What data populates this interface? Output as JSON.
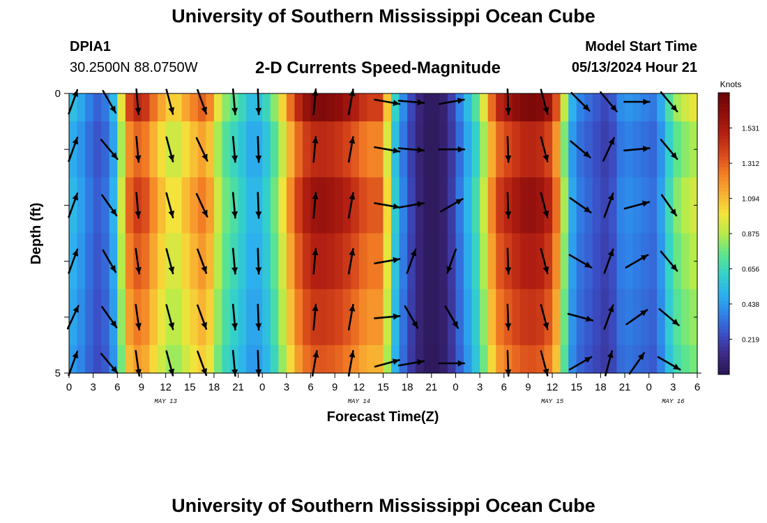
{
  "page": {
    "title_top": "University of Southern Mississippi Ocean Cube",
    "title_bottom": "University of Southern Mississippi Ocean Cube",
    "station": "DPIA1",
    "coordinates": "30.2500N  88.0750W",
    "subtitle": "2-D Currents Speed-Magnitude",
    "model_start_label": "Model Start Time",
    "model_start_value": "05/13/2024 Hour 21"
  },
  "colors": {
    "arrow": "#000000",
    "axis": "#000000",
    "palette": [
      "#2b1654",
      "#3c2a85",
      "#3b4ec6",
      "#2f82e8",
      "#2cb2ee",
      "#33d1c9",
      "#5ee58a",
      "#b5ec4a",
      "#f4e33a",
      "#f8b032",
      "#f27d25",
      "#d6461a",
      "#b32012",
      "#8f0e0c",
      "#6b0506"
    ]
  },
  "chart_data": {
    "type": "heatmap",
    "xlabel": "Forecast Time(Z)",
    "ylabel": "Depth (ft)",
    "x_range": [
      0,
      78
    ],
    "y_range": [
      0,
      5
    ],
    "x_ticks": [
      0,
      3,
      6,
      9,
      12,
      15,
      18,
      21,
      24,
      27,
      30,
      33,
      36,
      39,
      42,
      45,
      48,
      51,
      54,
      57,
      60,
      63,
      66,
      69,
      72,
      75,
      78
    ],
    "x_tick_labels": [
      "0",
      "3",
      "6",
      "9",
      "12",
      "15",
      "18",
      "21",
      "0",
      "3",
      "6",
      "9",
      "12",
      "15",
      "18",
      "21",
      "0",
      "3",
      "6",
      "9",
      "12",
      "15",
      "18",
      "21",
      "0",
      "3",
      "6"
    ],
    "y_ticks": [
      0,
      1,
      2,
      3,
      4,
      5
    ],
    "y_tick_labels": [
      "0",
      "",
      "",
      "",
      "",
      "5"
    ],
    "date_labels": [
      {
        "label": "MAY 13",
        "hour": 12
      },
      {
        "label": "MAY 14",
        "hour": 36
      },
      {
        "label": "MAY 15",
        "hour": 60
      },
      {
        "label": "MAY 16",
        "hour": 75
      }
    ],
    "colorbar": {
      "title": "Knots",
      "min": 0.0,
      "max": 1.75,
      "tick_values": [
        0.219,
        0.438,
        0.656,
        0.875,
        1.094,
        1.312,
        1.531
      ],
      "tick_labels": [
        "0.219",
        "0.438",
        "0.656",
        "0.875",
        "1.094",
        "1.312",
        "1.531"
      ]
    },
    "speed_profile_hours": [
      0,
      1,
      2,
      3,
      4,
      5,
      6,
      7,
      8,
      9,
      11,
      13,
      15,
      17,
      19,
      21,
      23,
      25,
      27,
      28,
      29,
      30,
      31,
      33,
      35,
      37,
      39,
      40,
      41,
      42,
      43,
      44,
      45,
      46,
      47,
      48,
      49,
      51,
      53,
      55,
      57,
      59,
      60,
      61,
      62,
      63,
      64,
      65,
      66,
      67,
      68,
      69,
      70,
      71,
      72,
      73,
      74,
      75,
      76,
      78
    ],
    "speed_profile_knots": [
      0.6,
      0.5,
      0.45,
      0.3,
      0.3,
      0.4,
      0.65,
      1.3,
      1.45,
      1.5,
      1.2,
      1.0,
      1.2,
      1.35,
      0.85,
      0.7,
      0.5,
      0.7,
      1.15,
      1.4,
      1.55,
      1.65,
      1.68,
      1.65,
      1.55,
      1.4,
      1.4,
      0.75,
      0.5,
      0.3,
      0.15,
      0.05,
      0.02,
      0.05,
      0.1,
      0.3,
      0.45,
      0.8,
      1.45,
      1.6,
      1.7,
      1.65,
      1.5,
      1.2,
      0.6,
      0.4,
      0.35,
      0.3,
      0.25,
      0.2,
      0.35,
      0.45,
      0.4,
      0.4,
      0.35,
      0.35,
      0.6,
      0.8,
      0.9,
      1.0
    ],
    "depth_layer_factors": [
      1.0,
      0.88,
      0.95,
      0.9,
      0.85,
      0.8
    ],
    "vector_hours": [
      0.5,
      5,
      8.5,
      12.5,
      16.5,
      20.5,
      23.5,
      30.5,
      35,
      39.5,
      42.5,
      47.5,
      54.5,
      59,
      63.5,
      67,
      70.5,
      74.5
    ],
    "vector_depths": [
      0,
      1,
      2,
      3,
      4,
      5
    ],
    "vector_directions_deg": [
      [
        20,
        150,
        175,
        165,
        160,
        175,
        178,
        5,
        10,
        100,
        95,
        80,
        178,
        165,
        135,
        140,
        90,
        140
      ],
      [
        20,
        140,
        175,
        165,
        155,
        175,
        178,
        5,
        10,
        100,
        95,
        90,
        178,
        165,
        130,
        25,
        85,
        140
      ],
      [
        20,
        145,
        175,
        165,
        155,
        175,
        178,
        5,
        10,
        100,
        80,
        60,
        178,
        165,
        125,
        20,
        75,
        145
      ],
      [
        20,
        150,
        172,
        165,
        160,
        175,
        178,
        5,
        10,
        80,
        20,
        200,
        178,
        165,
        120,
        20,
        60,
        140
      ],
      [
        25,
        145,
        172,
        165,
        160,
        175,
        178,
        5,
        10,
        85,
        150,
        150,
        178,
        165,
        105,
        20,
        55,
        130
      ],
      [
        20,
        140,
        172,
        165,
        160,
        175,
        178,
        10,
        10,
        75,
        80,
        90,
        178,
        165,
        60,
        15,
        35,
        120
      ]
    ]
  }
}
